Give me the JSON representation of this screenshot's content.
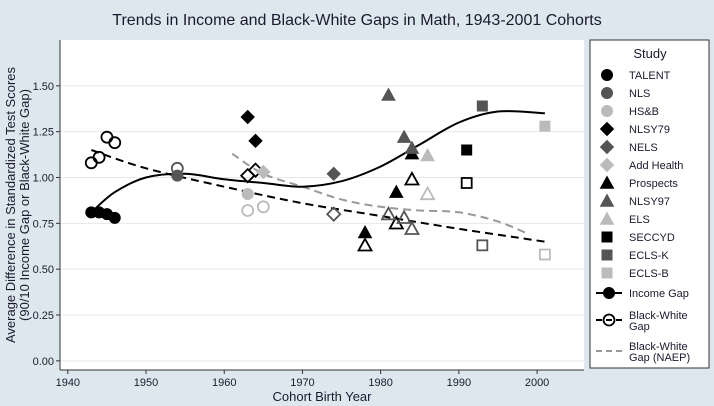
{
  "chart_data": {
    "type": "scatter",
    "title": "Trends in Income and Black-White Gaps in Math, 1943-2001 Cohorts",
    "xlabel": "Cohort Birth Year",
    "ylabel": [
      "Average Difference in Standardized Test Scores",
      "(90/10 Income Gap or Black-White Gap)"
    ],
    "xlim": [
      1939,
      2006
    ],
    "ylim": [
      -0.05,
      1.75
    ],
    "xticks": [
      1940,
      1950,
      1960,
      1970,
      1980,
      1990,
      2000
    ],
    "yticks": [
      0.0,
      0.25,
      0.5,
      0.75,
      1.0,
      1.25,
      1.5
    ],
    "ytick_labels": [
      "0.00",
      "0.25",
      "0.50",
      "0.75",
      "1.00",
      "1.25",
      "1.50"
    ],
    "grid": "horizontal",
    "legend_title": "Study",
    "legend_position": "right",
    "studies": [
      {
        "name": "TALENT",
        "shape": "circle",
        "color": "#000000",
        "income": [
          [
            1943,
            0.81
          ],
          [
            1944,
            0.81
          ],
          [
            1945,
            0.8
          ],
          [
            1946,
            0.78
          ]
        ],
        "bw": [
          [
            1943,
            1.08
          ],
          [
            1944,
            1.11
          ],
          [
            1945,
            1.22
          ],
          [
            1946,
            1.19
          ]
        ]
      },
      {
        "name": "NLS",
        "shape": "circle",
        "color": "#555555",
        "income": [
          [
            1954,
            1.01
          ]
        ],
        "bw": [
          [
            1954,
            1.05
          ]
        ]
      },
      {
        "name": "HS&B",
        "shape": "circle",
        "color": "#bbbbbb",
        "income": [
          [
            1963,
            0.91
          ]
        ],
        "bw": [
          [
            1963,
            0.82
          ],
          [
            1965,
            0.84
          ]
        ]
      },
      {
        "name": "NLSY79",
        "shape": "diamond",
        "color": "#000000",
        "income": [
          [
            1963,
            1.33
          ],
          [
            1964,
            1.2
          ]
        ],
        "bw": [
          [
            1963,
            1.01
          ],
          [
            1964,
            1.04
          ]
        ]
      },
      {
        "name": "NELS",
        "shape": "diamond",
        "color": "#555555",
        "income": [
          [
            1974,
            1.02
          ]
        ],
        "bw": [
          [
            1974,
            0.8
          ]
        ]
      },
      {
        "name": "Add Health",
        "shape": "diamond",
        "color": "#bbbbbb",
        "income": [
          [
            1965,
            1.03
          ]
        ],
        "bw": []
      },
      {
        "name": "Prospects",
        "shape": "triangle",
        "color": "#000000",
        "income": [
          [
            1978,
            0.7
          ],
          [
            1982,
            0.92
          ],
          [
            1984,
            1.13
          ]
        ],
        "bw": [
          [
            1978,
            0.63
          ],
          [
            1982,
            0.75
          ],
          [
            1984,
            0.99
          ]
        ]
      },
      {
        "name": "NLSY97",
        "shape": "triangle",
        "color": "#555555",
        "income": [
          [
            1981,
            1.45
          ],
          [
            1983,
            1.22
          ],
          [
            1984,
            1.16
          ]
        ],
        "bw": [
          [
            1981,
            0.8
          ],
          [
            1983,
            0.78
          ],
          [
            1984,
            0.72
          ]
        ]
      },
      {
        "name": "ELS",
        "shape": "triangle",
        "color": "#bbbbbb",
        "income": [
          [
            1986,
            1.12
          ]
        ],
        "bw": [
          [
            1986,
            0.91
          ]
        ]
      },
      {
        "name": "SECCYD",
        "shape": "square",
        "color": "#000000",
        "income": [
          [
            1991,
            1.15
          ]
        ],
        "bw": [
          [
            1991,
            0.97
          ]
        ]
      },
      {
        "name": "ECLS-K",
        "shape": "square",
        "color": "#555555",
        "income": [
          [
            1993,
            1.39
          ]
        ],
        "bw": [
          [
            1993,
            0.63
          ]
        ]
      },
      {
        "name": "ECLS-B",
        "shape": "square",
        "color": "#bbbbbb",
        "income": [
          [
            2001,
            1.28
          ]
        ],
        "bw": [
          [
            2001,
            0.58
          ]
        ]
      }
    ],
    "income_fit": [
      [
        1943,
        0.81
      ],
      [
        1946,
        0.92
      ],
      [
        1950,
        1.0
      ],
      [
        1955,
        1.02
      ],
      [
        1960,
        0.99
      ],
      [
        1965,
        0.97
      ],
      [
        1970,
        0.95
      ],
      [
        1975,
        0.98
      ],
      [
        1980,
        1.06
      ],
      [
        1985,
        1.18
      ],
      [
        1990,
        1.3
      ],
      [
        1995,
        1.36
      ],
      [
        2001,
        1.35
      ]
    ],
    "bw_fit": [
      [
        1943,
        1.15
      ],
      [
        1950,
        1.05
      ],
      [
        1960,
        0.95
      ],
      [
        1970,
        0.86
      ],
      [
        1980,
        0.79
      ],
      [
        1990,
        0.72
      ],
      [
        2001,
        0.65
      ]
    ],
    "naep_fit": [
      [
        1961,
        1.13
      ],
      [
        1965,
        1.02
      ],
      [
        1970,
        0.95
      ],
      [
        1975,
        0.88
      ],
      [
        1980,
        0.84
      ],
      [
        1985,
        0.82
      ],
      [
        1990,
        0.81
      ],
      [
        1995,
        0.76
      ],
      [
        1999,
        0.69
      ]
    ],
    "line_legend": [
      {
        "key": "income",
        "label": [
          "Income Gap"
        ]
      },
      {
        "key": "bw",
        "label": [
          "Black-White",
          "Gap"
        ]
      },
      {
        "key": "naep",
        "label": [
          "Black-White",
          "Gap (NAEP)"
        ]
      }
    ]
  }
}
